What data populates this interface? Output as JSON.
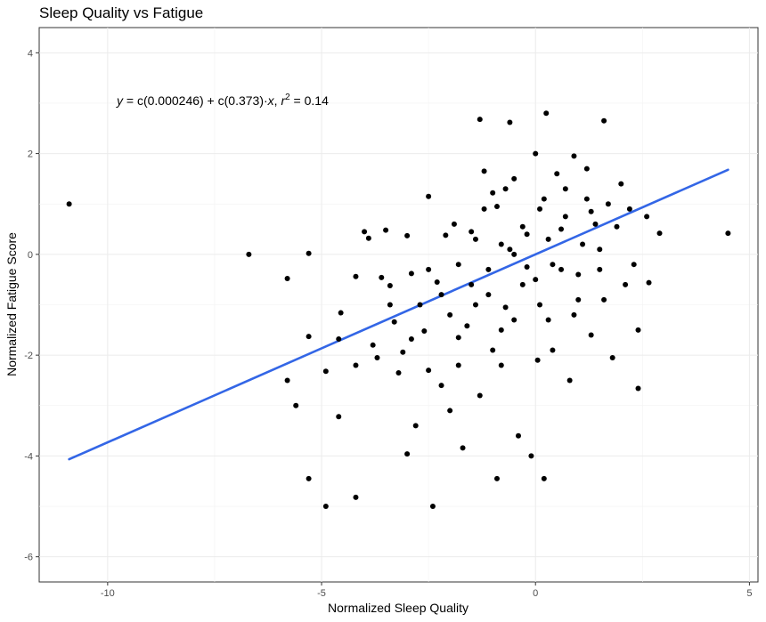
{
  "chart_data": {
    "type": "scatter",
    "title": "Sleep Quality vs Fatigue",
    "xlabel": "Normalized Sleep Quality",
    "ylabel": "Normalized Fatigue Score",
    "xlim": [
      -11.6,
      5.2
    ],
    "ylim": [
      -6.5,
      4.5
    ],
    "x_ticks": [
      -10,
      -5,
      0,
      5
    ],
    "y_ticks": [
      -6,
      -4,
      -2,
      0,
      2,
      4
    ],
    "grid": true,
    "regression": {
      "equation_parts": {
        "y": "y",
        "eq": " = c(0.000246) + c(0.373)·",
        "x": "x",
        "sep": ",  ",
        "r": "r",
        "sup": "2",
        "val": " = 0.14"
      },
      "intercept": 0.000246,
      "slope": 0.373,
      "x_range": [
        -10.9,
        4.5
      ],
      "color": "#3366e6"
    },
    "point_color": "#000000",
    "points": [
      [
        -10.9,
        1.0
      ],
      [
        -6.7,
        0.0
      ],
      [
        -5.8,
        -0.48
      ],
      [
        -5.8,
        -2.5
      ],
      [
        -5.6,
        -3.0
      ],
      [
        -5.3,
        0.02
      ],
      [
        -5.3,
        -1.63
      ],
      [
        -5.3,
        -4.45
      ],
      [
        -4.9,
        -2.32
      ],
      [
        -4.9,
        -5.0
      ],
      [
        -4.6,
        -1.68
      ],
      [
        -4.6,
        -3.22
      ],
      [
        -4.55,
        -1.16
      ],
      [
        -4.2,
        -0.44
      ],
      [
        -4.2,
        -2.2
      ],
      [
        -4.2,
        -4.82
      ],
      [
        -4.0,
        0.45
      ],
      [
        -3.9,
        0.32
      ],
      [
        -3.8,
        -1.8
      ],
      [
        -3.7,
        -2.05
      ],
      [
        -3.6,
        -0.46
      ],
      [
        -3.5,
        0.48
      ],
      [
        -3.4,
        -0.62
      ],
      [
        -3.4,
        -1.0
      ],
      [
        -3.3,
        -1.34
      ],
      [
        -3.2,
        -2.35
      ],
      [
        -3.1,
        -1.94
      ],
      [
        -3.0,
        0.37
      ],
      [
        -3.0,
        -3.96
      ],
      [
        -2.9,
        -0.38
      ],
      [
        -2.9,
        -1.68
      ],
      [
        -2.8,
        -3.4
      ],
      [
        -2.7,
        -1.0
      ],
      [
        -2.6,
        -1.52
      ],
      [
        -2.5,
        1.15
      ],
      [
        -2.5,
        -0.3
      ],
      [
        -2.5,
        -2.3
      ],
      [
        -2.4,
        -5.0
      ],
      [
        -2.3,
        -0.55
      ],
      [
        -2.2,
        -0.8
      ],
      [
        -2.2,
        -2.6
      ],
      [
        -2.1,
        0.38
      ],
      [
        -2.0,
        -1.2
      ],
      [
        -2.0,
        -3.1
      ],
      [
        -1.9,
        0.6
      ],
      [
        -1.8,
        -0.2
      ],
      [
        -1.8,
        -1.65
      ],
      [
        -1.8,
        -2.2
      ],
      [
        -1.7,
        -3.84
      ],
      [
        -1.6,
        -1.42
      ],
      [
        -1.5,
        0.45
      ],
      [
        -1.5,
        -0.6
      ],
      [
        -1.4,
        -1.0
      ],
      [
        -1.3,
        2.68
      ],
      [
        -1.3,
        -2.8
      ],
      [
        -1.2,
        0.9
      ],
      [
        -1.1,
        -0.8
      ],
      [
        -1.0,
        1.22
      ],
      [
        -1.0,
        -1.9
      ],
      [
        -0.9,
        -4.45
      ],
      [
        -0.8,
        0.2
      ],
      [
        -0.8,
        -2.2
      ],
      [
        -0.7,
        1.3
      ],
      [
        -0.7,
        -1.05
      ],
      [
        -0.6,
        2.62
      ],
      [
        -0.5,
        0.0
      ],
      [
        -0.5,
        -1.3
      ],
      [
        -0.4,
        -3.6
      ],
      [
        -0.3,
        0.55
      ],
      [
        -0.2,
        -0.25
      ],
      [
        -0.1,
        -4.0
      ],
      [
        0.0,
        2.0
      ],
      [
        0.0,
        -0.5
      ],
      [
        0.05,
        -2.1
      ],
      [
        0.1,
        -1.0
      ],
      [
        0.2,
        1.1
      ],
      [
        0.2,
        -4.45
      ],
      [
        0.25,
        2.8
      ],
      [
        0.3,
        0.3
      ],
      [
        0.4,
        -1.9
      ],
      [
        0.5,
        1.6
      ],
      [
        0.6,
        -0.3
      ],
      [
        0.7,
        0.75
      ],
      [
        0.8,
        -2.5
      ],
      [
        0.9,
        1.95
      ],
      [
        1.0,
        -0.9
      ],
      [
        1.1,
        0.2
      ],
      [
        1.2,
        1.7
      ],
      [
        1.3,
        -1.6
      ],
      [
        1.4,
        0.6
      ],
      [
        1.5,
        -0.3
      ],
      [
        1.6,
        2.65
      ],
      [
        1.7,
        1.0
      ],
      [
        1.8,
        -2.05
      ],
      [
        1.9,
        0.55
      ],
      [
        2.0,
        1.4
      ],
      [
        2.1,
        -0.6
      ],
      [
        2.2,
        0.9
      ],
      [
        2.3,
        -0.2
      ],
      [
        2.4,
        -1.5
      ],
      [
        2.4,
        -2.66
      ],
      [
        2.6,
        0.75
      ],
      [
        2.65,
        -0.56
      ],
      [
        2.9,
        0.42
      ],
      [
        4.5,
        0.42
      ],
      [
        -1.2,
        1.65
      ],
      [
        -0.9,
        0.95
      ],
      [
        -0.6,
        0.1
      ],
      [
        -0.3,
        -0.6
      ],
      [
        0.1,
        0.9
      ],
      [
        0.4,
        -0.2
      ],
      [
        0.7,
        1.3
      ],
      [
        1.0,
        -0.4
      ],
      [
        1.3,
        0.85
      ],
      [
        1.6,
        -0.9
      ],
      [
        -1.4,
        0.3
      ],
      [
        -1.1,
        -0.3
      ],
      [
        -0.8,
        -1.5
      ],
      [
        -0.5,
        1.5
      ],
      [
        -0.2,
        0.4
      ],
      [
        0.3,
        -1.3
      ],
      [
        0.6,
        0.5
      ],
      [
        0.9,
        -1.2
      ],
      [
        1.2,
        1.1
      ],
      [
        1.5,
        0.1
      ]
    ]
  }
}
